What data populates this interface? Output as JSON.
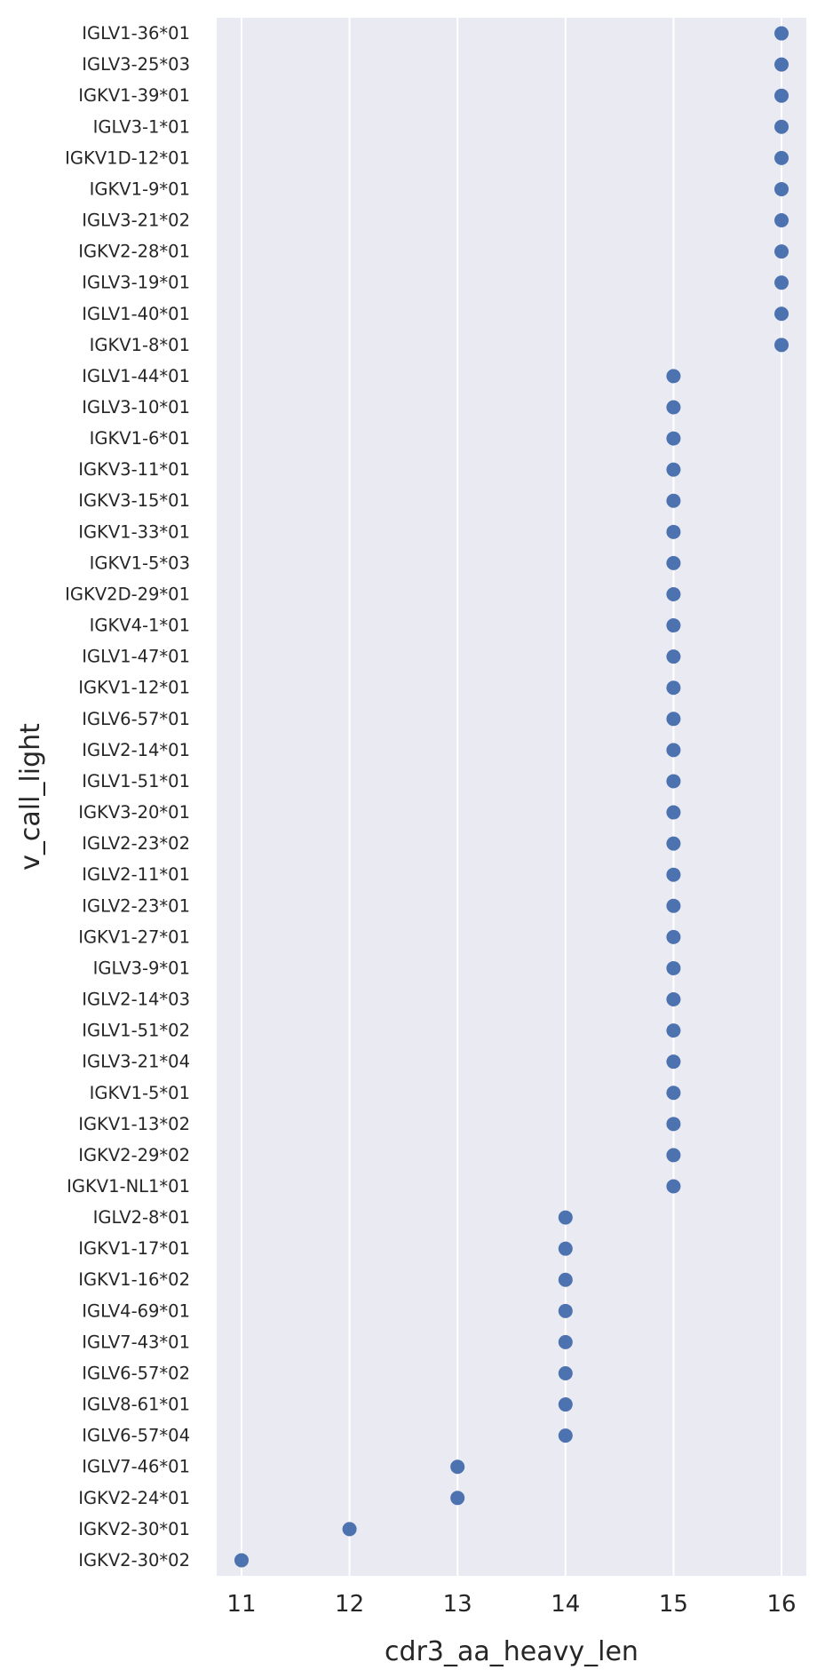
{
  "chart_data": {
    "type": "scatter",
    "xlabel": "cdr3_aa_heavy_len",
    "ylabel": "v_call_light",
    "xlim": [
      10.77,
      16.23
    ],
    "x_ticks": [
      11,
      12,
      13,
      14,
      15,
      16
    ],
    "grid": "vertical",
    "marker_color": "#4c72b0",
    "background_color": "#eaeaf2",
    "grid_color": "#ffffff",
    "categories": [
      "IGLV1-36*01",
      "IGLV3-25*03",
      "IGKV1-39*01",
      "IGLV3-1*01",
      "IGKV1D-12*01",
      "IGKV1-9*01",
      "IGLV3-21*02",
      "IGKV2-28*01",
      "IGLV3-19*01",
      "IGLV1-40*01",
      "IGKV1-8*01",
      "IGLV1-44*01",
      "IGLV3-10*01",
      "IGKV1-6*01",
      "IGKV3-11*01",
      "IGKV3-15*01",
      "IGKV1-33*01",
      "IGKV1-5*03",
      "IGKV2D-29*01",
      "IGKV4-1*01",
      "IGLV1-47*01",
      "IGKV1-12*01",
      "IGLV6-57*01",
      "IGLV2-14*01",
      "IGLV1-51*01",
      "IGKV3-20*01",
      "IGLV2-23*02",
      "IGLV2-11*01",
      "IGLV2-23*01",
      "IGKV1-27*01",
      "IGLV3-9*01",
      "IGLV2-14*03",
      "IGLV1-51*02",
      "IGLV3-21*04",
      "IGKV1-5*01",
      "IGKV1-13*02",
      "IGKV2-29*02",
      "IGKV1-NL1*01",
      "IGLV2-8*01",
      "IGKV1-17*01",
      "IGKV1-16*02",
      "IGLV4-69*01",
      "IGLV7-43*01",
      "IGLV6-57*02",
      "IGLV8-61*01",
      "IGLV6-57*04",
      "IGLV7-46*01",
      "IGKV2-24*01",
      "IGKV2-30*01",
      "IGKV2-30*02"
    ],
    "values": [
      16,
      16,
      16,
      16,
      16,
      16,
      16,
      16,
      16,
      16,
      16,
      15,
      15,
      15,
      15,
      15,
      15,
      15,
      15,
      15,
      15,
      15,
      15,
      15,
      15,
      15,
      15,
      15,
      15,
      15,
      15,
      15,
      15,
      15,
      15,
      15,
      15,
      15,
      14,
      14,
      14,
      14,
      14,
      14,
      14,
      14,
      13,
      13,
      12,
      11
    ]
  }
}
